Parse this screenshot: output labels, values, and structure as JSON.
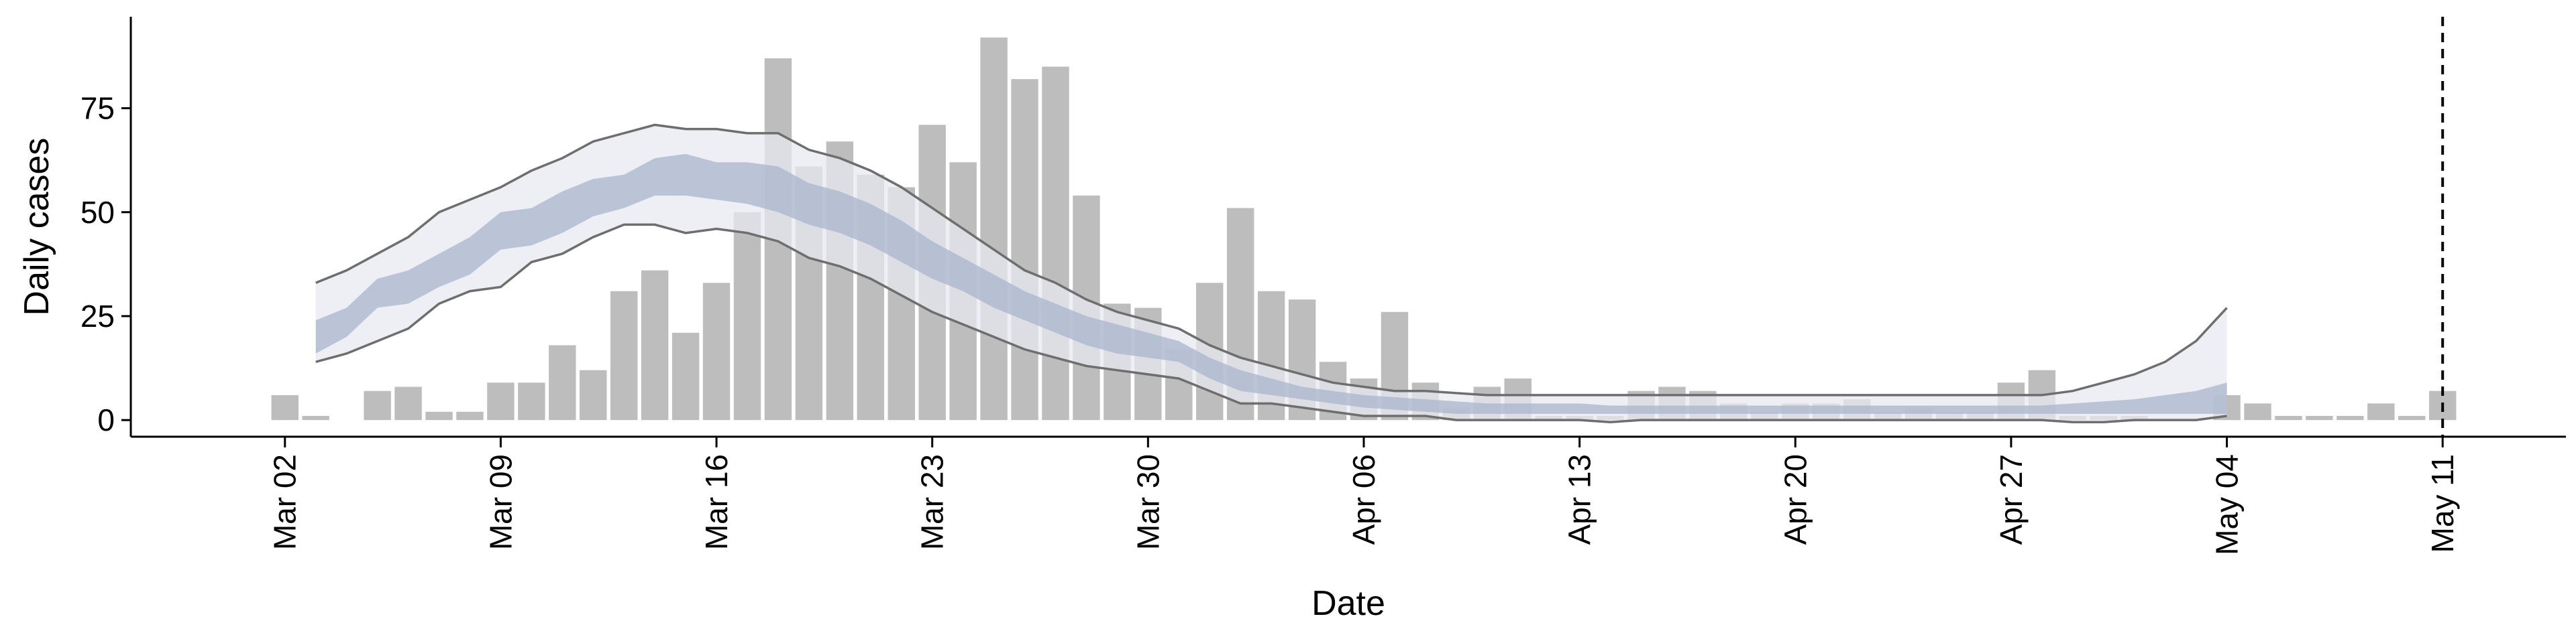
{
  "chart_data": {
    "type": "bar",
    "xlabel": "Date",
    "ylabel": "Daily cases",
    "x_start": "2020-03-02",
    "x_ticks": [
      {
        "date": "2020-03-02",
        "label": "Mar 02"
      },
      {
        "date": "2020-03-09",
        "label": "Mar 09"
      },
      {
        "date": "2020-03-16",
        "label": "Mar 16"
      },
      {
        "date": "2020-03-23",
        "label": "Mar 23"
      },
      {
        "date": "2020-03-30",
        "label": "Mar 30"
      },
      {
        "date": "2020-04-06",
        "label": "Apr 06"
      },
      {
        "date": "2020-04-13",
        "label": "Apr 13"
      },
      {
        "date": "2020-04-20",
        "label": "Apr 20"
      },
      {
        "date": "2020-04-27",
        "label": "Apr 27"
      },
      {
        "date": "2020-05-04",
        "label": "May 04"
      },
      {
        "date": "2020-05-11",
        "label": "May 11"
      }
    ],
    "y_ticks": [
      0,
      25,
      50,
      75
    ],
    "ylim": [
      -4,
      97
    ],
    "xlim": [
      "2020-02-26",
      "2020-05-15"
    ],
    "vline_date": "2020-05-11",
    "grid": false,
    "legend": "none",
    "colors": {
      "bars": "#bdbdbd",
      "band_outer": "#e8eaf1",
      "band_inner": "#a9b4cc",
      "bounds": "#6e6e6e",
      "vline": "#000000"
    },
    "bars": [
      6,
      1,
      0,
      7,
      8,
      2,
      2,
      9,
      9,
      18,
      12,
      31,
      36,
      21,
      33,
      50,
      87,
      61,
      67,
      59,
      56,
      71,
      62,
      92,
      82,
      85,
      54,
      28,
      27,
      17,
      33,
      51,
      31,
      29,
      14,
      10,
      26,
      9,
      3,
      8,
      10,
      1,
      1,
      1,
      7,
      8,
      7,
      4,
      2,
      4,
      4,
      5,
      2,
      3,
      2,
      2,
      9,
      12,
      1,
      1,
      1,
      0,
      0,
      6,
      4,
      1,
      1,
      1,
      4,
      1,
      7
    ],
    "estimate": {
      "outer_upper": [
        33,
        36,
        40,
        44,
        50,
        53,
        56,
        60,
        63,
        67,
        69,
        71,
        70,
        70,
        69,
        69,
        65,
        63,
        60,
        56,
        51,
        46,
        41,
        36,
        33,
        29,
        26,
        24,
        22,
        18,
        15,
        13,
        11,
        9,
        8,
        7,
        7,
        6.5,
        6,
        6,
        6,
        6,
        6,
        6,
        6,
        6,
        6,
        6,
        6,
        6,
        6,
        6,
        6,
        6,
        6,
        6,
        6,
        7,
        9,
        11,
        14,
        19,
        27
      ],
      "outer_lower": [
        14,
        16,
        19,
        22,
        28,
        31,
        32,
        38,
        40,
        44,
        47,
        47,
        45,
        46,
        45,
        43,
        39,
        37,
        34,
        30,
        26,
        23,
        20,
        17,
        15,
        13,
        12,
        11,
        10,
        7,
        4,
        4,
        3,
        2,
        1,
        1,
        1,
        0,
        0,
        0,
        0,
        0,
        -0.5,
        0,
        0,
        0,
        0,
        0,
        0,
        0,
        0,
        0,
        0,
        0,
        0,
        0,
        0,
        -0.5,
        -0.5,
        0,
        0,
        0,
        1
      ],
      "inner_upper": [
        24,
        27,
        34,
        36,
        40,
        44,
        50,
        51,
        55,
        58,
        59,
        63,
        64,
        62,
        62,
        61,
        57,
        55,
        52,
        48,
        43,
        39,
        35,
        31,
        28,
        25,
        23,
        21,
        19,
        15,
        12,
        10,
        8,
        7,
        6,
        5.5,
        5,
        4.5,
        4,
        4,
        4,
        4,
        3.5,
        3.5,
        3.5,
        3.5,
        3.5,
        3.5,
        3.5,
        3.5,
        3.5,
        3.5,
        3.5,
        3.5,
        3.5,
        3.5,
        3.5,
        4,
        4.5,
        5,
        6,
        7,
        9
      ],
      "inner_lower": [
        16,
        20,
        27,
        28,
        32,
        35,
        41,
        42,
        45,
        49,
        51,
        54,
        54,
        53,
        52,
        50,
        47,
        45,
        42,
        38,
        34,
        31,
        27,
        24,
        21,
        18,
        16,
        15,
        14,
        10,
        7,
        6,
        5,
        4,
        3,
        2.5,
        2,
        1.5,
        1.5,
        1.5,
        1.5,
        1.5,
        1.5,
        1.5,
        1.5,
        1.5,
        1.5,
        1.5,
        1.5,
        1.5,
        1.5,
        1.5,
        1.5,
        1.5,
        1.5,
        1.5,
        1.5,
        1.5,
        1.5,
        1.5,
        1.5,
        1.5,
        1.5
      ]
    }
  }
}
